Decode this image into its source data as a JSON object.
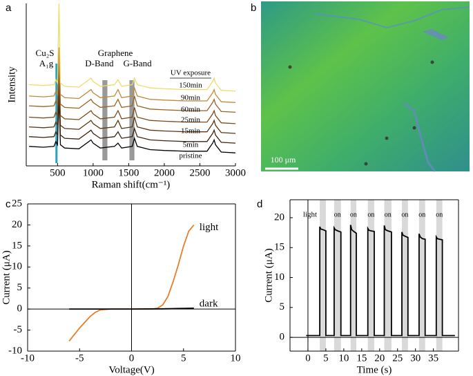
{
  "chart_data": [
    {
      "type": "line",
      "label": "a",
      "x_label": "Raman shift(cm⁻¹)",
      "y_label": "Intensity",
      "xlim": [
        60,
        3000
      ],
      "ylim": [
        0,
        100
      ],
      "xticks": [
        500,
        1000,
        1500,
        2000,
        2500,
        3000
      ],
      "legend_title": "UV exposure",
      "group_label": "Graphene",
      "bands": [
        {
          "label": [
            "Cu₂S",
            "A₁g"
          ],
          "range": [
            470,
            500
          ],
          "color": "#2aa3c0"
        },
        {
          "label": [
            "D-Band"
          ],
          "range": [
            1130,
            1200
          ],
          "color": "#999999"
        },
        {
          "label": [
            "G-Band"
          ],
          "range": [
            1510,
            1580
          ],
          "color": "#999999"
        }
      ],
      "x": [
        100,
        300,
        450,
        475,
        500,
        520,
        540,
        600,
        800,
        940,
        970,
        1000,
        1100,
        1300,
        1350,
        1400,
        1550,
        1580,
        1620,
        1800,
        2000,
        2300,
        2600,
        2680,
        2700,
        2720,
        2800,
        3000
      ],
      "series": [
        {
          "name": "pristine",
          "color": "#000000",
          "values": [
            12,
            11.5,
            12,
            15,
            13,
            42,
            13,
            11,
            10.5,
            15,
            16,
            14,
            11,
            12,
            14,
            11,
            12,
            17,
            12,
            10,
            9.5,
            9,
            9,
            14,
            16,
            13,
            8.5,
            8
          ]
        },
        {
          "name": "5min",
          "color": "#3d2410",
          "values": [
            18,
            17.5,
            18,
            21,
            19,
            48,
            19,
            17,
            16.5,
            21,
            22,
            20,
            17,
            18,
            21,
            17,
            18,
            23,
            18,
            16,
            15.5,
            15,
            15,
            20,
            22,
            19,
            14.5,
            14
          ]
        },
        {
          "name": "15min",
          "color": "#5c3512",
          "values": [
            24,
            23.5,
            24,
            27,
            25,
            56,
            25,
            23,
            22.5,
            27,
            28,
            26,
            23,
            24,
            28,
            23,
            24,
            30,
            24,
            22,
            21.5,
            21,
            21,
            26,
            28,
            25,
            20.5,
            20
          ]
        },
        {
          "name": "25min",
          "color": "#7b4a1c",
          "values": [
            30,
            29.5,
            30,
            33,
            31,
            62,
            31,
            29,
            28.5,
            33,
            34,
            32,
            29,
            30,
            34,
            29,
            30,
            36,
            30,
            28,
            27.5,
            27,
            27,
            32,
            34,
            31,
            26.5,
            26
          ]
        },
        {
          "name": "60min",
          "color": "#9a6224",
          "values": [
            37,
            36.5,
            37,
            40,
            38,
            67,
            38,
            36,
            35.5,
            40,
            41,
            39,
            36,
            37,
            41,
            36,
            37,
            43,
            37,
            35,
            34.5,
            34,
            34,
            39,
            41,
            38,
            33.5,
            33
          ]
        },
        {
          "name": "90min",
          "color": "#c08a3a",
          "values": [
            43,
            42.5,
            43,
            46,
            44,
            73,
            44,
            42,
            41.5,
            46,
            47,
            45,
            42,
            43,
            47,
            42,
            43,
            48,
            43,
            41,
            40.5,
            40,
            40,
            45,
            47,
            44,
            39.5,
            39
          ]
        },
        {
          "name": "150min",
          "color": "#eedc6a",
          "values": [
            50,
            49.5,
            50,
            53,
            51,
            100,
            51,
            49,
            48.5,
            53,
            54,
            52,
            49,
            50,
            53,
            49,
            50,
            54,
            50,
            48,
            47.5,
            47,
            47,
            52,
            54,
            51,
            46.5,
            46
          ]
        }
      ]
    },
    {
      "type": "image",
      "label": "b",
      "scale_bar": "100 μm"
    },
    {
      "type": "line",
      "label": "c",
      "x_label": "Voltage(V)",
      "y_label": "Current (μA)",
      "xlim": [
        -10,
        10
      ],
      "ylim": [
        -10,
        25
      ],
      "xticks": [
        -10,
        -5,
        0,
        5,
        10
      ],
      "yticks": [
        -10,
        -5,
        0,
        5,
        10,
        15,
        20,
        25
      ],
      "series": [
        {
          "name": "light",
          "color": "#e87d2a",
          "x": [
            -6,
            -5,
            -4,
            -3.5,
            -3,
            -2,
            0,
            2,
            2.5,
            3,
            3.5,
            4,
            4.5,
            5,
            5.5,
            6
          ],
          "values": [
            -7.6,
            -4.5,
            -1.8,
            -0.8,
            -0.2,
            0,
            0,
            0,
            0.2,
            1,
            3,
            6.5,
            10.5,
            15,
            18.5,
            20
          ]
        },
        {
          "name": "dark",
          "color": "#000000",
          "x": [
            -6,
            0,
            3,
            6
          ],
          "values": [
            0,
            0,
            0.05,
            0.2
          ]
        }
      ]
    },
    {
      "type": "line",
      "label": "d",
      "x_label": "Time (s)",
      "y_label": "Current (μA)",
      "xlim": [
        -5,
        42
      ],
      "ylim": [
        -2.3,
        23
      ],
      "xticks": [
        0,
        5,
        10,
        15,
        20,
        25,
        30,
        35
      ],
      "yticks": [
        0,
        5,
        10,
        15,
        20
      ],
      "bands": [
        {
          "label": "light",
          "range": [
            3.3,
            5.0
          ]
        },
        {
          "label": "on",
          "range": [
            7.3,
            9.2
          ]
        },
        {
          "label": "on",
          "range": [
            11.9,
            13.5
          ]
        },
        {
          "label": "on",
          "range": [
            16.7,
            18.5
          ]
        },
        {
          "label": "on",
          "range": [
            21.3,
            23.3
          ]
        },
        {
          "label": "on",
          "range": [
            26.2,
            27.9
          ]
        },
        {
          "label": "on",
          "range": [
            31.0,
            32.7
          ]
        },
        {
          "label": "on",
          "range": [
            35.8,
            37.5
          ]
        }
      ],
      "series": [
        {
          "color": "#000000",
          "x": [
            -0.5,
            3.3,
            3.3,
            3.6,
            4.2,
            5.0,
            5.0,
            7.3,
            7.3,
            7.6,
            8.3,
            9.2,
            9.2,
            11.9,
            11.9,
            12.2,
            12.8,
            13.5,
            13.5,
            16.7,
            16.7,
            17.0,
            17.6,
            18.5,
            18.5,
            21.3,
            21.3,
            21.6,
            22.3,
            23.3,
            23.3,
            26.2,
            26.2,
            26.5,
            27.1,
            27.9,
            27.9,
            31.0,
            31.0,
            31.3,
            31.9,
            32.7,
            32.7,
            35.8,
            35.8,
            36.1,
            36.7,
            37.5,
            37.5,
            41
          ],
          "values": [
            0.3,
            0.3,
            18.5,
            18.1,
            18.0,
            17.8,
            0.3,
            0.3,
            18.3,
            18.0,
            17.8,
            17.6,
            0.3,
            0.3,
            18.8,
            18.0,
            17.7,
            17.4,
            0.3,
            0.3,
            18.2,
            17.9,
            17.8,
            17.7,
            0.3,
            0.3,
            18.7,
            18.0,
            17.8,
            17.6,
            0.3,
            0.3,
            17.6,
            17.1,
            16.9,
            16.7,
            0.3,
            0.3,
            17.3,
            16.8,
            16.5,
            16.4,
            0.3,
            0.3,
            16.8,
            16.5,
            16.4,
            16.3,
            0.3,
            0.3
          ]
        }
      ]
    }
  ]
}
